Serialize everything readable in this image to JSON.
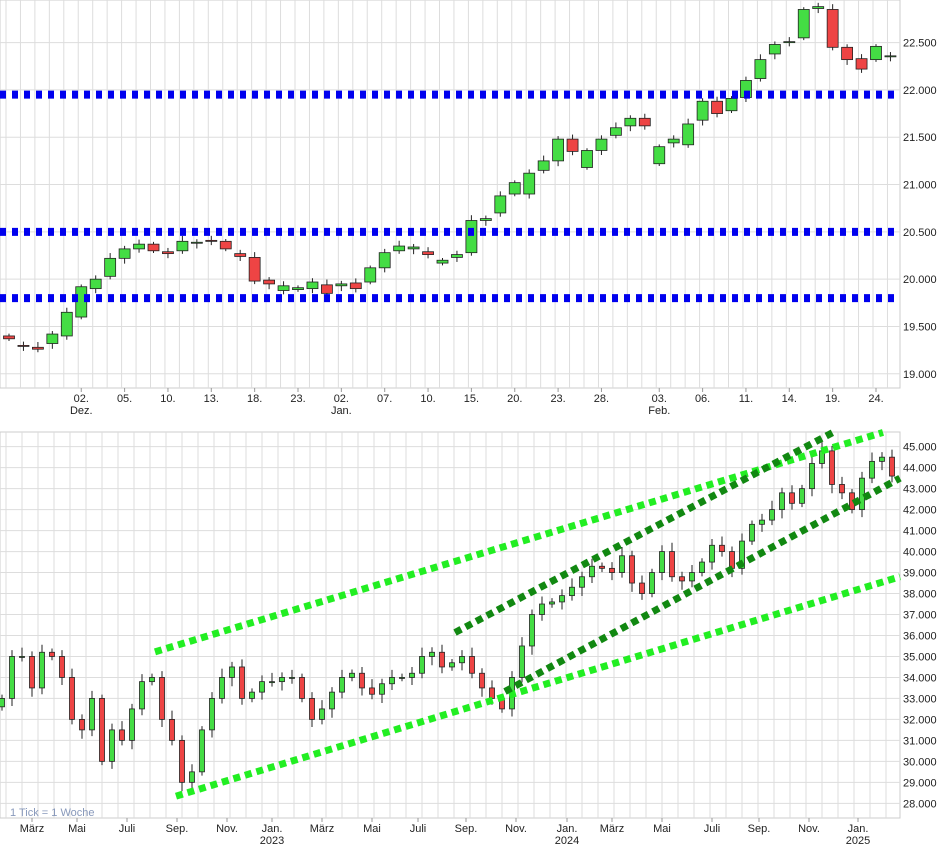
{
  "chart_data": [
    {
      "type": "candlestick",
      "panel": "daily",
      "ylim": [
        18850,
        22950
      ],
      "yticks": [
        "19.000",
        "19.500",
        "20.000",
        "20.500",
        "21.000",
        "21.500",
        "22.000",
        "22.500"
      ],
      "ytick_values": [
        19000,
        19500,
        20000,
        20500,
        21000,
        21500,
        22000,
        22500
      ],
      "xtick_labels": [
        {
          "i": 5,
          "day": "02.",
          "month": "Dez."
        },
        {
          "i": 8,
          "day": "05."
        },
        {
          "i": 11,
          "day": "10."
        },
        {
          "i": 14,
          "day": "13."
        },
        {
          "i": 17,
          "day": "18."
        },
        {
          "i": 20,
          "day": "23."
        },
        {
          "i": 23,
          "day": "02.",
          "month": "Jan."
        },
        {
          "i": 26,
          "day": "07."
        },
        {
          "i": 29,
          "day": "10."
        },
        {
          "i": 32,
          "day": "15."
        },
        {
          "i": 35,
          "day": "20."
        },
        {
          "i": 38,
          "day": "23."
        },
        {
          "i": 41,
          "day": "28."
        },
        {
          "i": 45,
          "day": "03.",
          "month": "Feb."
        },
        {
          "i": 48,
          "day": "06."
        },
        {
          "i": 51,
          "day": "11."
        },
        {
          "i": 54,
          "day": "14."
        },
        {
          "i": 57,
          "day": "19."
        },
        {
          "i": 60,
          "day": "24."
        }
      ],
      "candles_oc": [
        [
          19400,
          19370
        ],
        [
          19300,
          19290
        ],
        [
          19280,
          19260
        ],
        [
          19320,
          19420
        ],
        [
          19400,
          19650
        ],
        [
          19600,
          19920
        ],
        [
          19900,
          20000
        ],
        [
          20030,
          20220
        ],
        [
          20220,
          20320
        ],
        [
          20320,
          20370
        ],
        [
          20370,
          20300
        ],
        [
          20290,
          20270
        ],
        [
          20300,
          20400
        ],
        [
          20380,
          20390
        ],
        [
          20410,
          20400
        ],
        [
          20400,
          20320
        ],
        [
          20270,
          20240
        ],
        [
          20230,
          19980
        ],
        [
          19990,
          19950
        ],
        [
          19880,
          19930
        ],
        [
          19890,
          19910
        ],
        [
          19900,
          19970
        ],
        [
          19940,
          19850
        ],
        [
          19930,
          19950
        ],
        [
          19960,
          19900
        ],
        [
          19970,
          20120
        ],
        [
          20120,
          20280
        ],
        [
          20300,
          20350
        ],
        [
          20320,
          20340
        ],
        [
          20290,
          20260
        ],
        [
          20170,
          20200
        ],
        [
          20230,
          20260
        ],
        [
          20280,
          20620
        ],
        [
          20620,
          20640
        ],
        [
          20700,
          20880
        ],
        [
          20900,
          21020
        ],
        [
          20900,
          21120
        ],
        [
          21150,
          21250
        ],
        [
          21250,
          21480
        ],
        [
          21480,
          21350
        ],
        [
          21180,
          21360
        ],
        [
          21360,
          21480
        ],
        [
          21520,
          21600
        ],
        [
          21620,
          21700
        ],
        [
          21700,
          21620
        ],
        [
          21220,
          21400
        ],
        [
          21440,
          21480
        ],
        [
          21420,
          21640
        ],
        [
          21680,
          21880
        ],
        [
          21880,
          21750
        ],
        [
          21780,
          21910
        ],
        [
          21920,
          22100
        ],
        [
          22120,
          22320
        ],
        [
          22380,
          22480
        ],
        [
          22500,
          22510
        ],
        [
          22550,
          22850
        ],
        [
          22860,
          22880
        ],
        [
          22850,
          22450
        ],
        [
          22450,
          22320
        ],
        [
          22330,
          22220
        ],
        [
          22320,
          22460
        ],
        [
          22350,
          22360
        ]
      ],
      "support_resistance_lines": [
        21950,
        20500,
        19800
      ],
      "line_color": "#0000ee"
    },
    {
      "type": "candlestick",
      "panel": "weekly",
      "note": "1 Tick = 1 Woche",
      "ylim": [
        27300,
        45700
      ],
      "yticks": [
        "28.000",
        "29.000",
        "30.000",
        "31.000",
        "32.000",
        "33.000",
        "34.000",
        "35.000",
        "36.000",
        "37.000",
        "38.000",
        "39.000",
        "40.000",
        "41.000",
        "42.000",
        "43.000",
        "44.000",
        "45.000"
      ],
      "ytick_values": [
        28000,
        29000,
        30000,
        31000,
        32000,
        33000,
        34000,
        35000,
        36000,
        37000,
        38000,
        39000,
        40000,
        41000,
        42000,
        43000,
        44000,
        45000
      ],
      "xtick_labels": [
        {
          "i": 3,
          "month": "März"
        },
        {
          "i": 7.5,
          "month": "Mai"
        },
        {
          "i": 12.5,
          "month": "Juli"
        },
        {
          "i": 17.5,
          "month": "Sep."
        },
        {
          "i": 22.5,
          "month": "Nov."
        },
        {
          "i": 27,
          "month": "Jan.",
          "year": "2023"
        },
        {
          "i": 32,
          "month": "März"
        },
        {
          "i": 37,
          "month": "Mai"
        },
        {
          "i": 41.6,
          "month": "Juli"
        },
        {
          "i": 46.4,
          "month": "Sep."
        },
        {
          "i": 51.4,
          "month": "Nov."
        },
        {
          "i": 56.5,
          "month": "Jan.",
          "year": "2024"
        },
        {
          "i": 61,
          "month": "März"
        },
        {
          "i": 66,
          "month": "Mai"
        },
        {
          "i": 71,
          "month": "Juli"
        },
        {
          "i": 75.7,
          "month": "Sep."
        },
        {
          "i": 80.7,
          "month": "Nov."
        },
        {
          "i": 85.6,
          "month": "Jan.",
          "year": "2025"
        }
      ],
      "closes": [
        33000,
        35000,
        35000,
        33500,
        35200,
        35000,
        34000,
        32000,
        31500,
        33000,
        30000,
        31500,
        31000,
        32500,
        33800,
        34000,
        32000,
        31000,
        29000,
        29500,
        31500,
        33000,
        34000,
        34500,
        33000,
        33300,
        33800,
        33800,
        34000,
        34000,
        33000,
        32000,
        32500,
        33300,
        34000,
        34200,
        33500,
        33200,
        33700,
        34000,
        34000,
        34200,
        35000,
        35200,
        34500,
        34700,
        35000,
        34200,
        33500,
        33000,
        32500,
        34000,
        35500,
        37000,
        37500,
        37600,
        37900,
        38300,
        38800,
        39300,
        39200,
        39000,
        39800,
        38500,
        38000,
        39000,
        40000,
        38800,
        38600,
        39000,
        39500,
        40300,
        40000,
        39200,
        40500,
        41300,
        41500,
        42000,
        42800,
        42300,
        43000,
        44200,
        44800,
        43200,
        42800,
        42000,
        43500,
        44300,
        44500,
        43600
      ],
      "trend_lines": [
        {
          "style": "light",
          "from": [
            15.3,
            35220
          ],
          "to": [
            88.1,
            45680
          ]
        },
        {
          "style": "light",
          "from": [
            17.4,
            28340
          ],
          "to": [
            89.8,
            38800
          ]
        },
        {
          "style": "dark",
          "from": [
            45.3,
            36140
          ],
          "to": [
            83.1,
            45680
          ]
        },
        {
          "style": "dark",
          "from": [
            50.3,
            33330
          ],
          "to": [
            89.8,
            43500
          ]
        }
      ],
      "colors": {
        "light_trend": "#22ee22",
        "dark_trend": "#118811"
      }
    }
  ],
  "colors": {
    "up": "#44dd44",
    "down": "#ee4444",
    "grid": "#dddddd"
  }
}
